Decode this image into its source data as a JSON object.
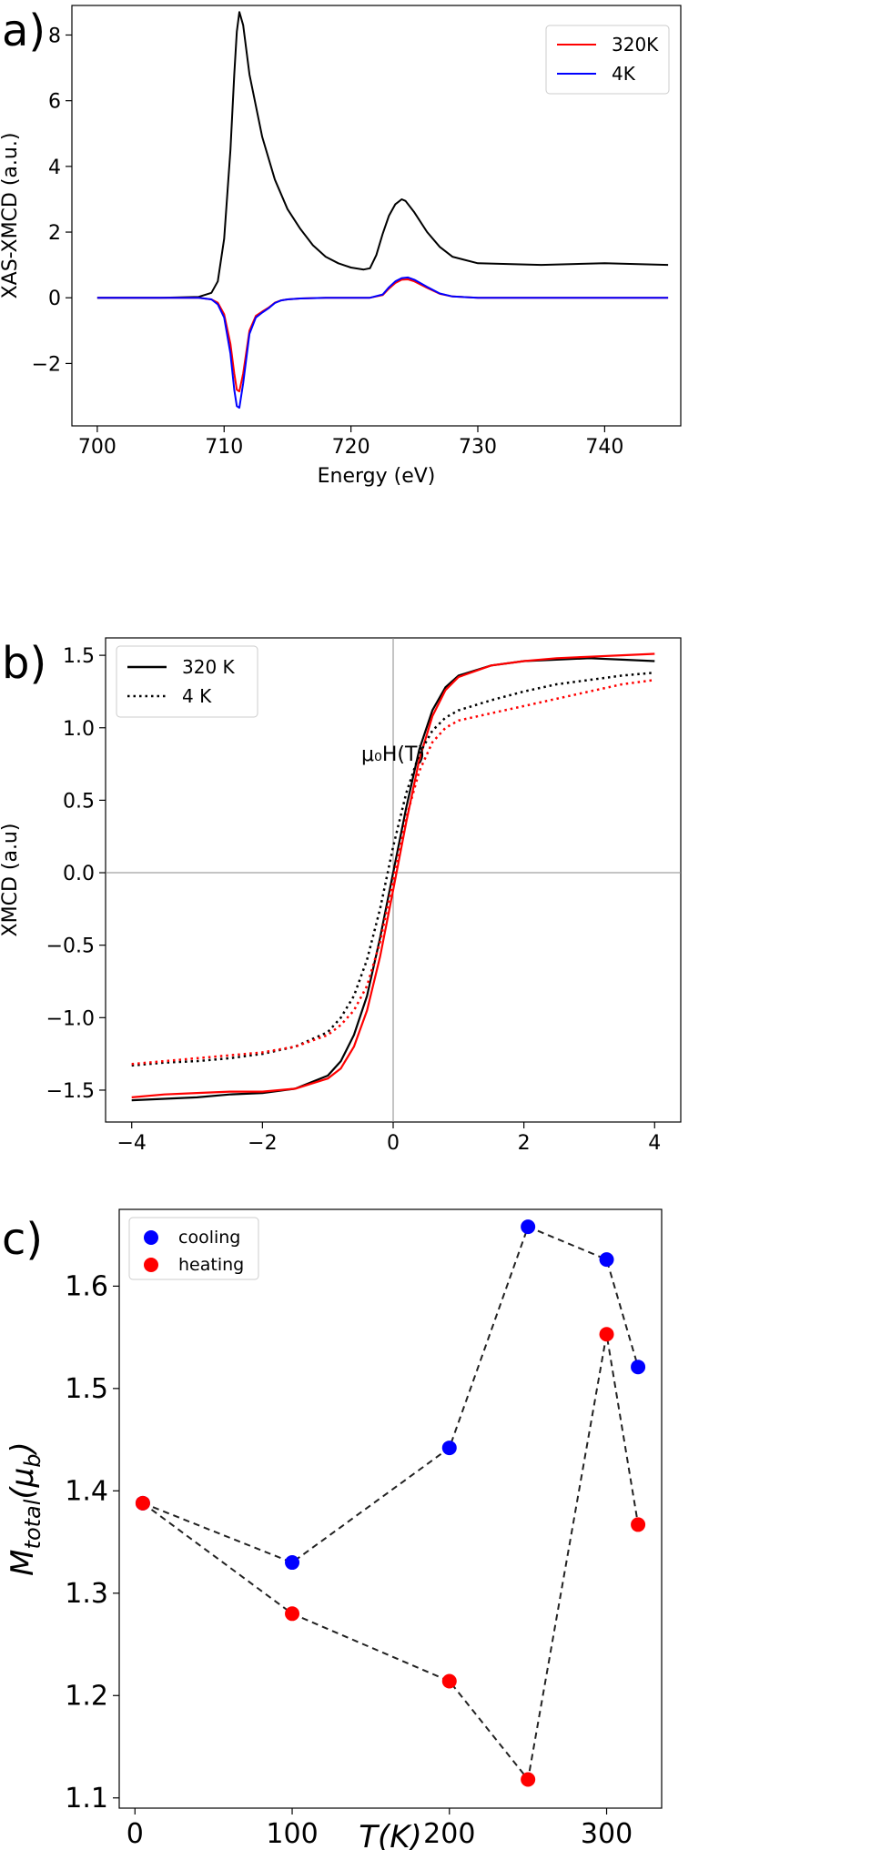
{
  "figure": {
    "panels": [
      {
        "label": "a)"
      },
      {
        "label": "b)"
      },
      {
        "label": "c)"
      }
    ]
  },
  "chart_data": [
    {
      "type": "line",
      "panel": "a)",
      "xlabel": "Energy (eV)",
      "ylabel": "XAS-XMCD (a.u.)",
      "xlim": [
        698,
        746
      ],
      "ylim": [
        -3.9,
        8.9
      ],
      "xticks": [
        700,
        710,
        720,
        730,
        740
      ],
      "yticks": [
        -2,
        0,
        2,
        4,
        6,
        8
      ],
      "grid": false,
      "legend_position": "top-right",
      "series": [
        {
          "color": "#000000",
          "x": [
            700,
            705,
            708,
            709,
            709.5,
            710,
            710.5,
            710.8,
            711,
            711.2,
            711.5,
            712,
            713,
            714,
            715,
            716,
            717,
            718,
            719,
            720,
            721,
            721.5,
            722,
            722.5,
            723,
            723.5,
            724,
            724.3,
            725,
            726,
            727,
            728,
            730,
            735,
            740,
            745
          ],
          "y": [
            0,
            0,
            0.03,
            0.15,
            0.5,
            1.8,
            4.5,
            6.8,
            8.1,
            8.7,
            8.3,
            6.8,
            4.9,
            3.6,
            2.7,
            2.1,
            1.6,
            1.25,
            1.05,
            0.92,
            0.86,
            0.9,
            1.3,
            1.95,
            2.5,
            2.85,
            3.0,
            2.95,
            2.6,
            2.0,
            1.55,
            1.25,
            1.05,
            1.0,
            1.05,
            1.0
          ]
        },
        {
          "name": "320K",
          "color": "#ff0000",
          "x": [
            700,
            708,
            709,
            709.5,
            710,
            710.5,
            710.8,
            711,
            711.2,
            711.5,
            712,
            712.5,
            713,
            713.5,
            714,
            714.5,
            715,
            716,
            718,
            720,
            721.5,
            722.5,
            723,
            723.5,
            724,
            724.5,
            725,
            726,
            727,
            728,
            730,
            735,
            745
          ],
          "y": [
            0,
            0,
            -0.05,
            -0.15,
            -0.5,
            -1.4,
            -2.3,
            -2.8,
            -2.85,
            -2.3,
            -1.0,
            -0.55,
            -0.42,
            -0.3,
            -0.15,
            -0.08,
            -0.05,
            -0.02,
            0,
            0,
            0,
            0.08,
            0.28,
            0.45,
            0.55,
            0.56,
            0.5,
            0.3,
            0.12,
            0.04,
            0,
            0,
            0
          ]
        },
        {
          "name": "4K",
          "color": "#0000ff",
          "x": [
            700,
            708,
            709,
            709.5,
            710,
            710.5,
            710.8,
            711,
            711.2,
            711.5,
            712,
            712.5,
            713,
            713.5,
            714,
            714.5,
            715,
            716,
            718,
            720,
            721.5,
            722.5,
            723,
            723.5,
            724,
            724.5,
            725,
            726,
            727,
            728,
            730,
            735,
            745
          ],
          "y": [
            0,
            0,
            -0.05,
            -0.2,
            -0.6,
            -1.7,
            -2.8,
            -3.3,
            -3.35,
            -2.6,
            -1.1,
            -0.6,
            -0.45,
            -0.32,
            -0.16,
            -0.08,
            -0.05,
            -0.02,
            0,
            0,
            0,
            0.1,
            0.32,
            0.5,
            0.6,
            0.62,
            0.55,
            0.33,
            0.13,
            0.04,
            0,
            0,
            0
          ]
        }
      ]
    },
    {
      "type": "line",
      "panel": "b)",
      "xlabel": "μ₀H(T)",
      "ylabel": "XMCD (a.u)",
      "xlim": [
        -4.4,
        4.4
      ],
      "ylim": [
        -1.72,
        1.62
      ],
      "xticks": [
        -4,
        -2,
        0,
        2,
        4
      ],
      "yticks": [
        -1.5,
        -1.0,
        -0.5,
        0.0,
        0.5,
        1.0,
        1.5
      ],
      "grid": false,
      "legend_position": "top-left",
      "reference_lines": {
        "x": 0,
        "y": 0
      },
      "series": [
        {
          "name": "320 K",
          "color": "#000000",
          "style": "solid",
          "x": [
            -4,
            -3.5,
            -3,
            -2.5,
            -2,
            -1.5,
            -1,
            -0.8,
            -0.6,
            -0.4,
            -0.2,
            0,
            0.2,
            0.4,
            0.6,
            0.8,
            1,
            1.5,
            2,
            2.5,
            3,
            3.5,
            4
          ],
          "y": [
            -1.57,
            -1.56,
            -1.55,
            -1.53,
            -1.52,
            -1.49,
            -1.4,
            -1.3,
            -1.12,
            -0.85,
            -0.45,
            0,
            0.45,
            0.85,
            1.12,
            1.28,
            1.36,
            1.43,
            1.46,
            1.47,
            1.48,
            1.47,
            1.46
          ]
        },
        {
          "color": "#ff0000",
          "style": "solid",
          "x": [
            -4,
            -3.5,
            -3,
            -2.5,
            -2,
            -1.5,
            -1,
            -0.8,
            -0.6,
            -0.4,
            -0.2,
            0,
            0.2,
            0.4,
            0.6,
            0.8,
            1,
            1.5,
            2,
            2.5,
            3,
            3.5,
            4
          ],
          "y": [
            -1.55,
            -1.53,
            -1.52,
            -1.51,
            -1.51,
            -1.49,
            -1.42,
            -1.35,
            -1.2,
            -0.95,
            -0.58,
            -0.12,
            0.35,
            0.78,
            1.08,
            1.26,
            1.35,
            1.43,
            1.46,
            1.48,
            1.49,
            1.5,
            1.51
          ]
        },
        {
          "name": "4 K",
          "color": "#000000",
          "style": "dotted",
          "x": [
            -4,
            -3.5,
            -3,
            -2.5,
            -2,
            -1.5,
            -1,
            -0.8,
            -0.6,
            -0.4,
            -0.2,
            0,
            0.2,
            0.4,
            0.6,
            0.8,
            1,
            1.5,
            2,
            2.5,
            3,
            3.5,
            4
          ],
          "y": [
            -1.33,
            -1.31,
            -1.3,
            -1.28,
            -1.25,
            -1.2,
            -1.1,
            -1.0,
            -0.85,
            -0.6,
            -0.25,
            0.18,
            0.55,
            0.82,
            0.98,
            1.07,
            1.12,
            1.19,
            1.25,
            1.3,
            1.33,
            1.36,
            1.38
          ]
        },
        {
          "color": "#ff0000",
          "style": "dotted",
          "x": [
            -4,
            -3.5,
            -3,
            -2.5,
            -2,
            -1.5,
            -1,
            -0.8,
            -0.6,
            -0.4,
            -0.2,
            0,
            0.2,
            0.4,
            0.6,
            0.8,
            1,
            1.5,
            2,
            2.5,
            3,
            3.5,
            4
          ],
          "y": [
            -1.32,
            -1.3,
            -1.28,
            -1.26,
            -1.24,
            -1.2,
            -1.12,
            -1.05,
            -0.95,
            -0.78,
            -0.48,
            -0.05,
            0.38,
            0.7,
            0.9,
            1.0,
            1.05,
            1.1,
            1.15,
            1.2,
            1.25,
            1.3,
            1.33
          ]
        }
      ]
    },
    {
      "type": "scatter",
      "panel": "c)",
      "xlabel": "T(K)",
      "ylabel": "M_total(μ_b)",
      "xlim": [
        -10,
        335
      ],
      "ylim": [
        1.09,
        1.675
      ],
      "xticks": [
        0,
        100,
        200,
        300
      ],
      "yticks": [
        1.1,
        1.2,
        1.3,
        1.4,
        1.5,
        1.6
      ],
      "grid": false,
      "legend_position": "top-left",
      "connector": "dashed black",
      "series": [
        {
          "name": "cooling",
          "color": "#0000ff",
          "x": [
            5,
            100,
            200,
            250,
            300,
            320
          ],
          "y": [
            1.388,
            1.33,
            1.442,
            1.658,
            1.626,
            1.521
          ]
        },
        {
          "name": "heating",
          "color": "#ff0000",
          "x": [
            5,
            100,
            200,
            250,
            300,
            320
          ],
          "y": [
            1.388,
            1.28,
            1.214,
            1.118,
            1.553,
            1.367
          ]
        }
      ]
    }
  ]
}
